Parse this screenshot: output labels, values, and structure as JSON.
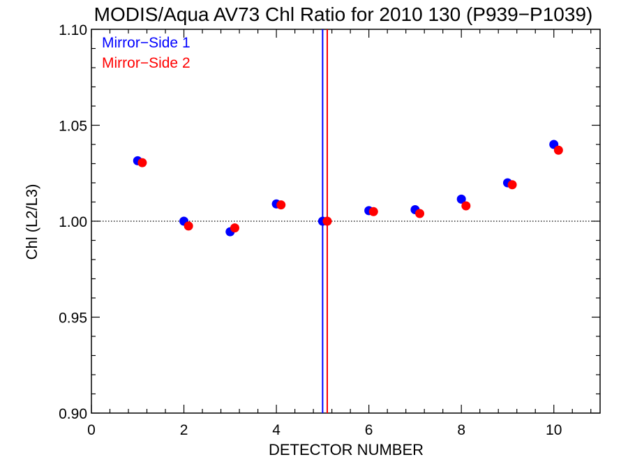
{
  "chart_data": {
    "type": "scatter",
    "title": "MODIS/Aqua AV73 Chl Ratio for 2010 130 (P939−P1039)",
    "xlabel": "DETECTOR NUMBER",
    "ylabel": "Chl (L2/L3)",
    "xlim": [
      0,
      11
    ],
    "ylim": [
      0.9,
      1.1
    ],
    "x_ticks": [
      0,
      2,
      4,
      6,
      8,
      10
    ],
    "x_tick_labels": [
      "0",
      "2",
      "4",
      "6",
      "8",
      "10"
    ],
    "y_ticks": [
      0.9,
      0.95,
      1.0,
      1.05,
      1.1
    ],
    "y_tick_labels": [
      "0.90",
      "0.95",
      "1.00",
      "1.05",
      "1.10"
    ],
    "reference_line_y": 1.0,
    "legend_placement": "top-left",
    "series": [
      {
        "name": "Mirror−Side 1",
        "color": "#0000ff",
        "x": [
          1,
          2,
          3,
          4,
          5,
          6,
          7,
          8,
          9,
          10
        ],
        "values": [
          1.0315,
          1.0,
          0.9945,
          1.009,
          1.0,
          1.0055,
          1.006,
          1.0115,
          1.02,
          1.04
        ],
        "vertical_line_x": 5.0
      },
      {
        "name": "Mirror−Side 2",
        "color": "#ff0000",
        "x": [
          1.1,
          2.1,
          3.1,
          4.1,
          5.1,
          6.1,
          7.1,
          8.1,
          9.1,
          10.1
        ],
        "values": [
          1.0305,
          0.9975,
          0.9965,
          1.0085,
          1.0,
          1.005,
          1.004,
          1.008,
          1.019,
          1.037
        ],
        "vertical_line_x": 5.1
      }
    ]
  }
}
